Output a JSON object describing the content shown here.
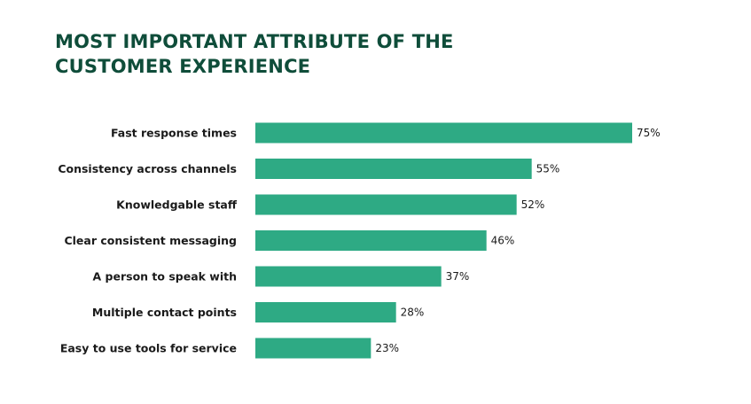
{
  "title_lines": [
    "MOST IMPORTANT ATTRIBUTE OF THE",
    "CUSTOMER EXPERIENCE"
  ],
  "chart_data": {
    "type": "bar",
    "orientation": "horizontal",
    "title": "MOST IMPORTANT ATTRIBUTE OF THE CUSTOMER EXPERIENCE",
    "categories": [
      "Fast response times",
      "Consistency across channels",
      "Knowledgable staff",
      "Clear consistent messaging",
      "A person to speak with",
      "Multiple contact points",
      "Easy to use tools for service"
    ],
    "values": [
      75,
      55,
      52,
      46,
      37,
      28,
      23
    ],
    "value_labels": [
      "75%",
      "55%",
      "52%",
      "46%",
      "37%",
      "28%",
      "23%"
    ],
    "unit": "%",
    "xlim": [
      0,
      100
    ],
    "grid": false,
    "legend": "none",
    "bar_color": "#2eaa84"
  },
  "colors": {
    "title": "#0f4d3a",
    "bar": "#2eaa84",
    "text": "#1a1a1a"
  }
}
